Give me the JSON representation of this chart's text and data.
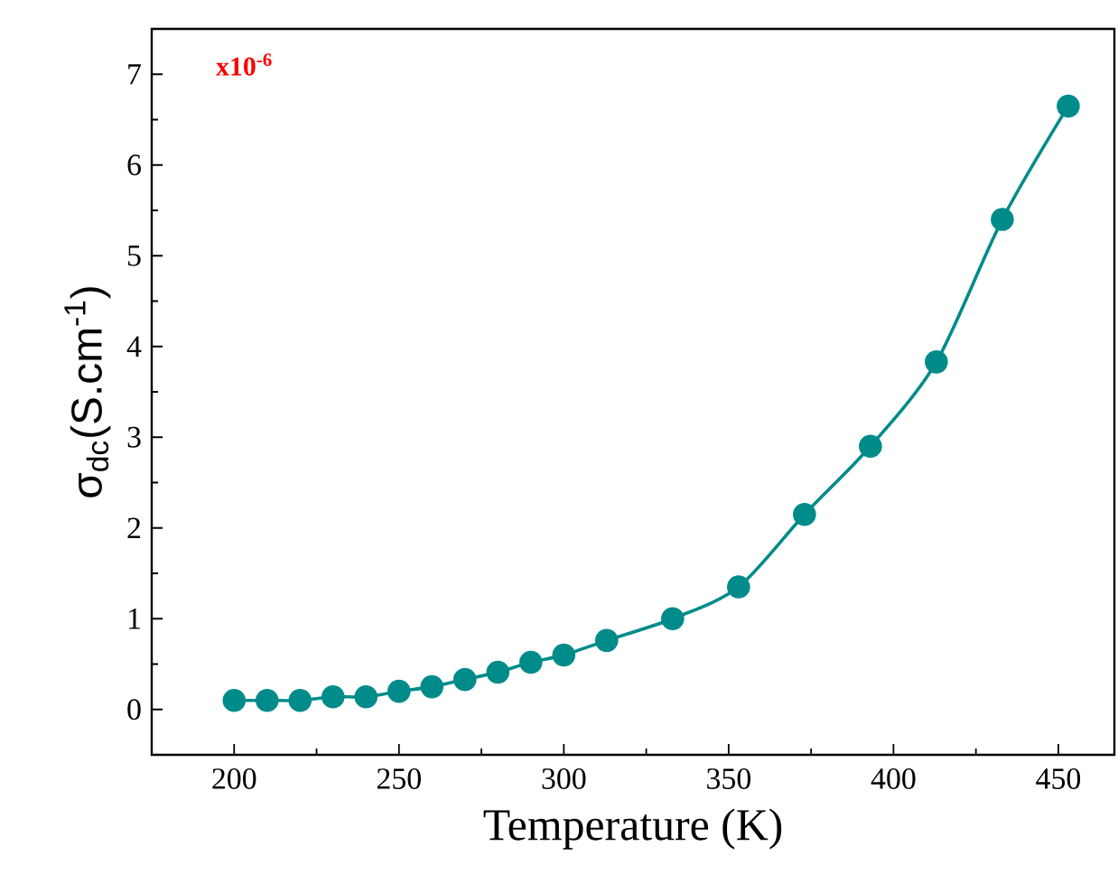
{
  "chart_data": {
    "type": "line",
    "xlabel": "Temperature (K)",
    "ylabel": "σ$_{dc}$(S.cm$^{-1}$)",
    "annotations": [
      "x10$^{-6}$"
    ],
    "series": [
      {
        "color": "#008b8b",
        "x": [
          200,
          210,
          220,
          230,
          240,
          250,
          260,
          270,
          280,
          290,
          300,
          313,
          333,
          353,
          373,
          393,
          413,
          433,
          453
        ],
        "values": [
          0.1,
          0.1,
          0.1,
          0.14,
          0.14,
          0.2,
          0.25,
          0.33,
          0.41,
          0.52,
          0.6,
          0.76,
          1.0,
          1.35,
          2.15,
          2.9,
          3.83,
          5.4,
          6.65
        ]
      }
    ],
    "xlim": [
      175,
      467
    ],
    "ylim": [
      -0.5,
      7.5
    ],
    "xticks": [
      200,
      250,
      300,
      350,
      400,
      450
    ],
    "yticks": [
      0,
      1,
      2,
      3,
      4,
      5,
      6,
      7
    ],
    "marker": "circle",
    "line_style": "solid"
  }
}
